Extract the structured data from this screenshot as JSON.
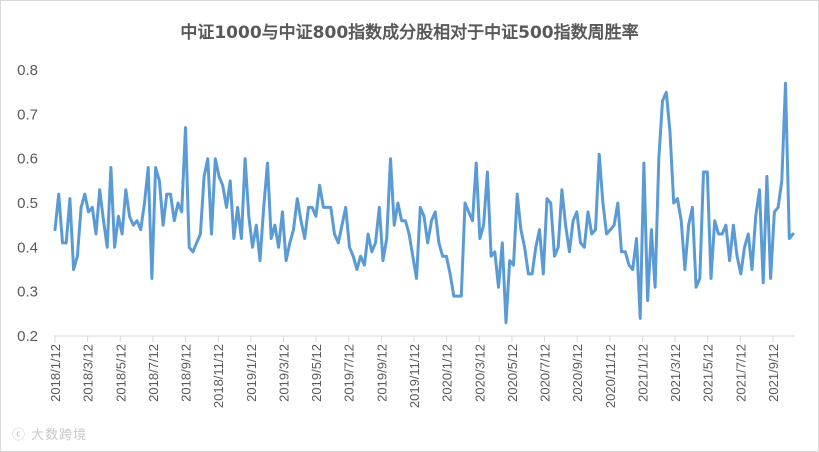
{
  "chart_data": {
    "type": "line",
    "title": "中证1000与中证800指数成分股相对于中证500指数周胜率",
    "xlabel": "",
    "ylabel": "",
    "ylim": [
      0.2,
      0.8
    ],
    "yticks": [
      "0.2",
      "0.3",
      "0.4",
      "0.5",
      "0.6",
      "0.7",
      "0.8"
    ],
    "grid": false,
    "legend": "none",
    "line_color": "#5b9bd5",
    "x_tick_labels": [
      "2018/1/12",
      "2018/3/12",
      "2018/5/12",
      "2018/7/12",
      "2018/9/12",
      "2018/11/12",
      "2019/1/12",
      "2019/3/12",
      "2019/5/12",
      "2019/7/12",
      "2019/9/12",
      "2019/11/12",
      "2020/1/12",
      "2020/3/12",
      "2020/5/12",
      "2020/7/12",
      "2020/9/12",
      "2020/11/12",
      "2021/1/12",
      "2021/3/12",
      "2021/5/12",
      "2021/7/12",
      "2021/9/12"
    ],
    "values": [
      0.44,
      0.52,
      0.41,
      0.41,
      0.51,
      0.35,
      0.38,
      0.49,
      0.52,
      0.48,
      0.49,
      0.43,
      0.53,
      0.46,
      0.4,
      0.58,
      0.4,
      0.47,
      0.43,
      0.53,
      0.47,
      0.45,
      0.46,
      0.44,
      0.5,
      0.58,
      0.33,
      0.58,
      0.55,
      0.45,
      0.52,
      0.52,
      0.46,
      0.5,
      0.48,
      0.67,
      0.4,
      0.39,
      0.41,
      0.43,
      0.56,
      0.6,
      0.43,
      0.6,
      0.56,
      0.54,
      0.49,
      0.55,
      0.42,
      0.49,
      0.42,
      0.6,
      0.47,
      0.4,
      0.45,
      0.37,
      0.49,
      0.59,
      0.42,
      0.45,
      0.4,
      0.48,
      0.37,
      0.41,
      0.44,
      0.51,
      0.46,
      0.42,
      0.49,
      0.49,
      0.47,
      0.54,
      0.49,
      0.49,
      0.49,
      0.43,
      0.41,
      0.45,
      0.49,
      0.4,
      0.38,
      0.35,
      0.38,
      0.36,
      0.43,
      0.39,
      0.41,
      0.49,
      0.37,
      0.42,
      0.6,
      0.45,
      0.5,
      0.46,
      0.46,
      0.43,
      0.38,
      0.33,
      0.49,
      0.47,
      0.41,
      0.46,
      0.48,
      0.41,
      0.38,
      0.38,
      0.34,
      0.29,
      0.29,
      0.29,
      0.5,
      0.48,
      0.46,
      0.59,
      0.42,
      0.45,
      0.57,
      0.38,
      0.39,
      0.31,
      0.41,
      0.23,
      0.37,
      0.36,
      0.52,
      0.44,
      0.4,
      0.34,
      0.34,
      0.4,
      0.44,
      0.34,
      0.51,
      0.5,
      0.38,
      0.4,
      0.53,
      0.45,
      0.39,
      0.46,
      0.48,
      0.41,
      0.4,
      0.48,
      0.43,
      0.44,
      0.61,
      0.5,
      0.43,
      0.44,
      0.45,
      0.5,
      0.39,
      0.39,
      0.36,
      0.35,
      0.42,
      0.24,
      0.59,
      0.28,
      0.44,
      0.31,
      0.6,
      0.73,
      0.75,
      0.66,
      0.5,
      0.51,
      0.46,
      0.35,
      0.45,
      0.49,
      0.31,
      0.33,
      0.57,
      0.57,
      0.33,
      0.46,
      0.43,
      0.43,
      0.45,
      0.37,
      0.45,
      0.38,
      0.34,
      0.4,
      0.43,
      0.35,
      0.47,
      0.53,
      0.32,
      0.56,
      0.33,
      0.48,
      0.49,
      0.55,
      0.77,
      0.42,
      0.43
    ]
  },
  "watermark": "ⓒ 大数跨境"
}
